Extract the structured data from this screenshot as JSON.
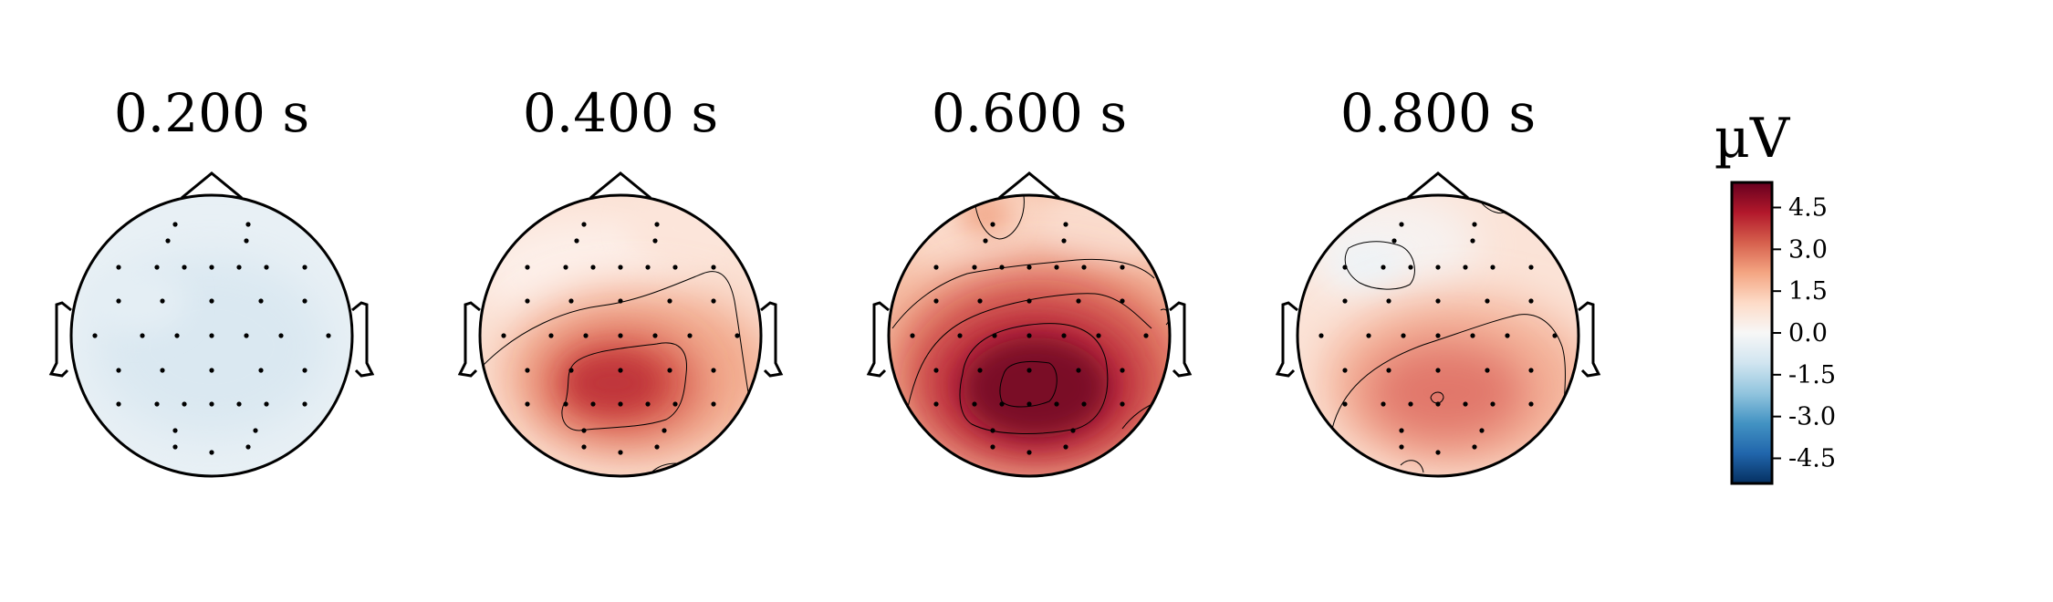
{
  "chart_data": {
    "type": "heatmap",
    "subtype": "eeg-topomap",
    "colormap": "RdBu_r",
    "colors": {
      "positive_max": "#67001f",
      "zero": "#f7f7f7",
      "negative_max": "#053061"
    },
    "colorbar": {
      "label": "µV",
      "range": [
        -5.4,
        5.4
      ],
      "ticks": [
        4.5,
        3.0,
        1.5,
        0.0,
        -1.5,
        -3.0,
        -4.5
      ],
      "tick_labels": [
        "4.5",
        "3.0",
        "1.5",
        "0.0",
        "-1.5",
        "-3.0",
        "-4.5"
      ]
    },
    "maps": [
      {
        "title": "0.200 s",
        "peak_uV": -0.6,
        "peak_location": "center"
      },
      {
        "title": "0.400 s",
        "peak_uV": 3.8,
        "peak_location": "centro-parietal"
      },
      {
        "title": "0.600 s",
        "peak_uV": 5.4,
        "peak_location": "centro-parietal"
      },
      {
        "title": "0.800 s",
        "peak_uV": 2.6,
        "peak_location": "centro-parietal"
      }
    ],
    "sensor_markers": "black dots",
    "contour_lines": true
  }
}
